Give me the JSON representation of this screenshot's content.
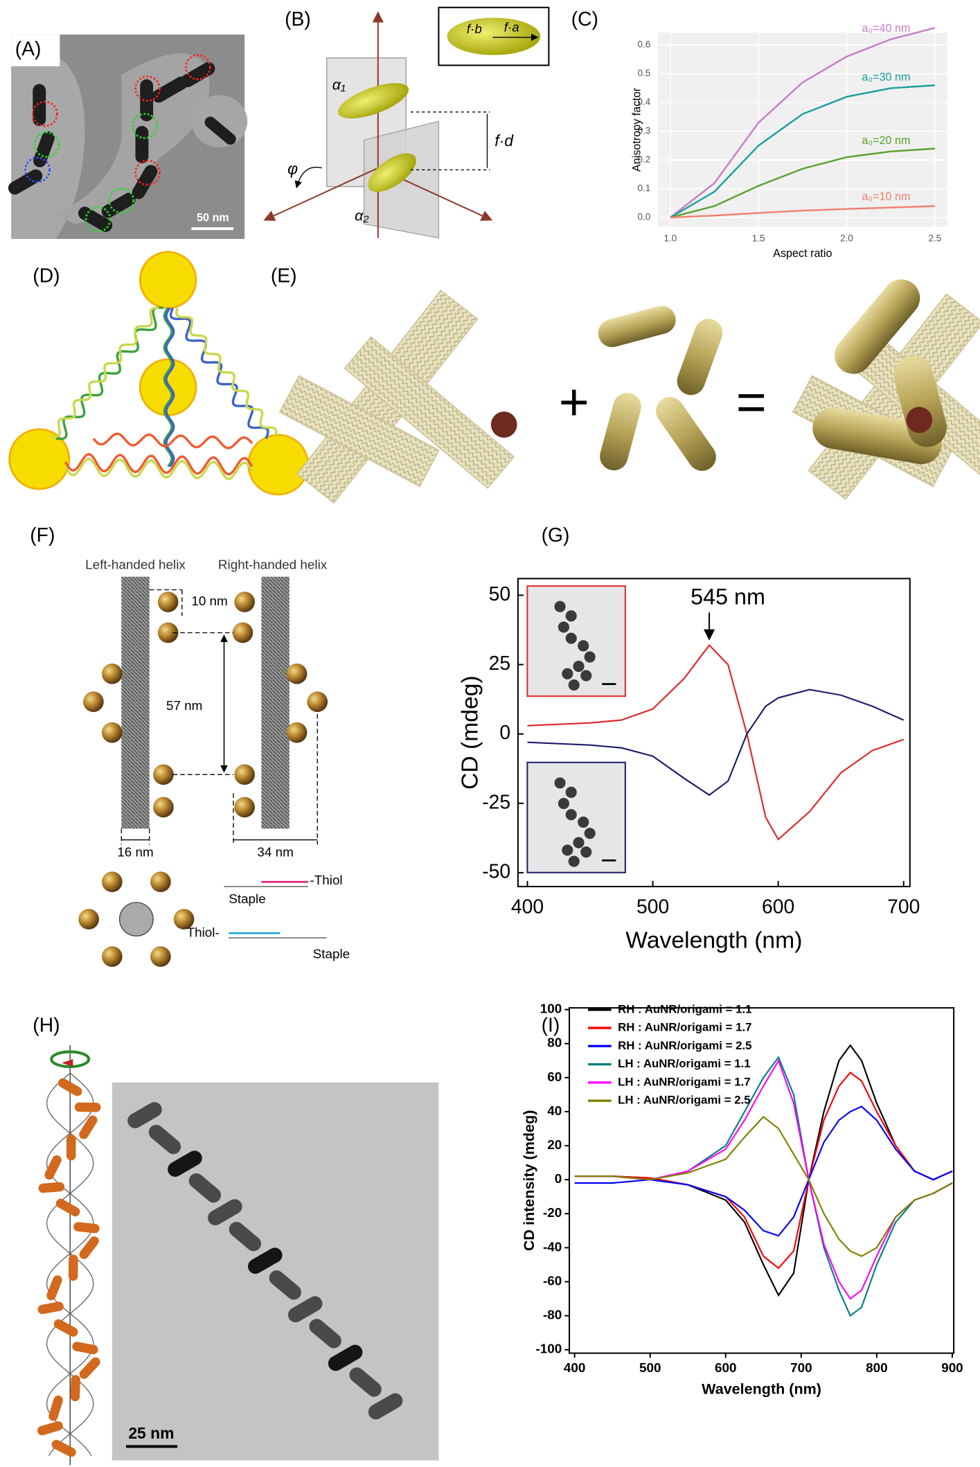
{
  "panels": {
    "labels": [
      "(A)",
      "(B)",
      "(C)",
      "(D)",
      "(E)",
      "(F)",
      "(G)",
      "(H)",
      "(I)"
    ]
  },
  "panel_a": {
    "scale_bar": "50 nm"
  },
  "panel_b": {
    "alpha1": "α₁",
    "alpha2": "α₂",
    "phi": "φ",
    "distance": "f·d",
    "inset_b": "f·b",
    "inset_a": "f·a"
  },
  "panel_e": {
    "plus": "+",
    "equals": "="
  },
  "panel_f": {
    "left_title": "Left-handed helix",
    "right_title": "Right-handed helix",
    "gap": "10 nm",
    "pitch": "57 nm",
    "width_left": "16 nm",
    "width_right": "34 nm",
    "thiol_right": "-Thiol",
    "staple_top": "Staple",
    "thiol_left": "Thiol-",
    "staple_bottom": "Staple"
  },
  "panel_h": {
    "scale_bar": "25 nm"
  },
  "chart_data": [
    {
      "type": "line",
      "y_label": "Anisotropy factor",
      "x_label": "Aspect ratio",
      "x": [
        1,
        1.25,
        1.5,
        1.75,
        2,
        2.25,
        2.5
      ],
      "series": [
        {
          "name": "a₀=40 nm",
          "color": "#c77cc8",
          "values": [
            0,
            0.12,
            0.33,
            0.47,
            0.56,
            0.62,
            0.66
          ]
        },
        {
          "name": "a₀=30 nm",
          "color": "#1a9e9e",
          "values": [
            0,
            0.09,
            0.25,
            0.36,
            0.42,
            0.45,
            0.46
          ]
        },
        {
          "name": "a₀=20 nm",
          "color": "#5aa02c",
          "values": [
            0,
            0.04,
            0.11,
            0.17,
            0.21,
            0.23,
            0.24
          ]
        },
        {
          "name": "a₀=10 nm",
          "color": "#f08070",
          "values": [
            0,
            0.007,
            0.016,
            0.024,
            0.03,
            0.035,
            0.04
          ]
        }
      ],
      "xlim": [
        0.93,
        2.57
      ],
      "ylim": [
        -0.032,
        0.643
      ],
      "xticks": [
        {
          "value": 1,
          "label": "1.0"
        },
        {
          "value": 1.5,
          "label": "1.5"
        },
        {
          "value": 2,
          "label": "2.0"
        },
        {
          "value": 2.5,
          "label": "2.5"
        }
      ],
      "yticks": [
        {
          "value": 0,
          "label": "0.0"
        },
        0.1,
        0.2,
        0.3,
        0.4,
        0.5,
        0.6
      ],
      "grid": true,
      "legend": "inline"
    },
    {
      "type": "line",
      "y_label": "CD (mdeg)",
      "x_label": "Wavelength (nm)",
      "annotation": "545 nm",
      "x": [
        400,
        425,
        450,
        475,
        500,
        525,
        545,
        560,
        575,
        590,
        600,
        625,
        650,
        675,
        700
      ],
      "series": [
        {
          "color": "#e0262a",
          "values": [
            3,
            3.5,
            4,
            5,
            9,
            20,
            32,
            25,
            0,
            -30,
            -38,
            -28,
            -14,
            -6,
            -2
          ]
        },
        {
          "color": "#1c1c6e",
          "values": [
            -3,
            -3.5,
            -4,
            -5,
            -8,
            -16,
            -22,
            -17,
            0,
            10,
            13,
            16,
            14,
            10,
            5
          ]
        }
      ],
      "xlim": [
        392.5,
        705
      ],
      "ylim": [
        -55,
        56
      ],
      "xticks": [
        400,
        500,
        600,
        700
      ],
      "yticks": [
        -50,
        -25,
        0,
        25,
        50
      ],
      "grid": false
    },
    {
      "type": "line",
      "y_label": "CD intensity (mdeg)",
      "x_label": "Wavelength (nm)",
      "x": [
        400,
        450,
        500,
        550,
        600,
        625,
        650,
        670,
        690,
        710,
        730,
        750,
        765,
        780,
        800,
        825,
        850,
        875,
        900
      ],
      "series": [
        {
          "name": "RH : AuNR/origami = 1.1",
          "color": "#000000",
          "values": [
            2,
            2,
            1,
            -3,
            -12,
            -25,
            -50,
            -68,
            -55,
            0,
            40,
            70,
            79,
            70,
            45,
            20,
            5,
            0,
            5
          ]
        },
        {
          "name": "RH : AuNR/origami = 1.7",
          "color": "#ff0000",
          "values": [
            2,
            2,
            1,
            -3,
            -10,
            -22,
            -45,
            -52,
            -42,
            0,
            35,
            55,
            63,
            58,
            40,
            20,
            5,
            0,
            5
          ]
        },
        {
          "name": "RH : AuNR/origami = 2.5",
          "color": "#0000ff",
          "values": [
            -2,
            -2,
            0,
            -3,
            -10,
            -18,
            -30,
            -33,
            -22,
            0,
            22,
            35,
            40,
            43,
            35,
            18,
            5,
            0,
            5
          ]
        },
        {
          "name": "LH : AuNR/origami = 1.1",
          "color": "#008080",
          "values": [
            2,
            2,
            0,
            5,
            20,
            40,
            60,
            72,
            50,
            0,
            -40,
            -65,
            -80,
            -75,
            -50,
            -25,
            -12,
            -8,
            -2
          ]
        },
        {
          "name": "LH : AuNR/origami = 1.7",
          "color": "#ff00ff",
          "values": [
            2,
            2,
            0,
            5,
            18,
            35,
            55,
            70,
            45,
            0,
            -38,
            -60,
            -70,
            -65,
            -45,
            -22,
            -12,
            -8,
            -2
          ]
        },
        {
          "name": "LH : AuNR/origami = 2.5",
          "color": "#808000",
          "values": [
            2,
            2,
            0,
            4,
            12,
            25,
            37,
            30,
            15,
            0,
            -20,
            -35,
            -42,
            -45,
            -40,
            -22,
            -12,
            -8,
            -2
          ]
        }
      ],
      "xlim": [
        393,
        902
      ],
      "ylim": [
        -102,
        101
      ],
      "xticks": [
        400,
        500,
        600,
        700,
        800,
        900
      ],
      "yticks": [
        -100,
        -80,
        -60,
        -40,
        -20,
        0,
        20,
        40,
        60,
        80,
        100
      ],
      "grid": false,
      "legend": "upper left"
    }
  ]
}
